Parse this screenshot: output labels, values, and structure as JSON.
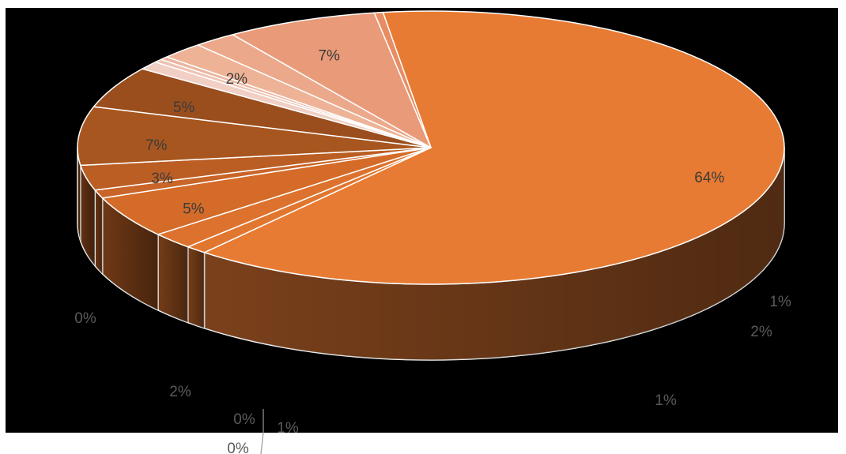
{
  "chart_data": {
    "type": "pie",
    "style": "3d",
    "start_angle_deg": 262.2,
    "direction": "clockwise",
    "slices": [
      {
        "label": "64%",
        "value": 64,
        "top_color": "#e87b33",
        "inside": true
      },
      {
        "label": "1%",
        "value": 1,
        "top_color": "#e1762f",
        "inside": false
      },
      {
        "label": "2%",
        "value": 2,
        "top_color": "#dc722d",
        "inside": false
      },
      {
        "label": "5%",
        "value": 5,
        "top_color": "#d46b28",
        "inside": true
      },
      {
        "label": "1%",
        "value": 1,
        "top_color": "#c96528",
        "inside": false
      },
      {
        "label": "3%",
        "value": 3,
        "top_color": "#bb5e24",
        "inside": true
      },
      {
        "label": "7%",
        "value": 7,
        "top_color": "#a8561f",
        "inside": true
      },
      {
        "label": "5%",
        "value": 5,
        "top_color": "#9a4e1d",
        "inside": true
      },
      {
        "label": "1%",
        "value": 1,
        "top_color": "#f1cfc4",
        "inside": false
      },
      {
        "label": "0%",
        "value": 0.4,
        "top_color": "#eec2b1",
        "inside": false
      },
      {
        "label": "0%",
        "value": 0.4,
        "top_color": "#ebb59f",
        "inside": false
      },
      {
        "label": "2%",
        "value": 2,
        "top_color": "#eeb396",
        "inside": true
      },
      {
        "label": "2%",
        "value": 2,
        "top_color": "#eca88a",
        "inside": false
      },
      {
        "label": "7%",
        "value": 7,
        "top_color": "#e99a78",
        "inside": true
      },
      {
        "label": "0%",
        "value": 0.4,
        "top_color": "#e88d63",
        "inside": false
      }
    ],
    "colors": {
      "background": "#000000",
      "edge": "#ffffff",
      "label_inside": "#3b3b3b",
      "label_outside": "#5a5a5a"
    }
  }
}
